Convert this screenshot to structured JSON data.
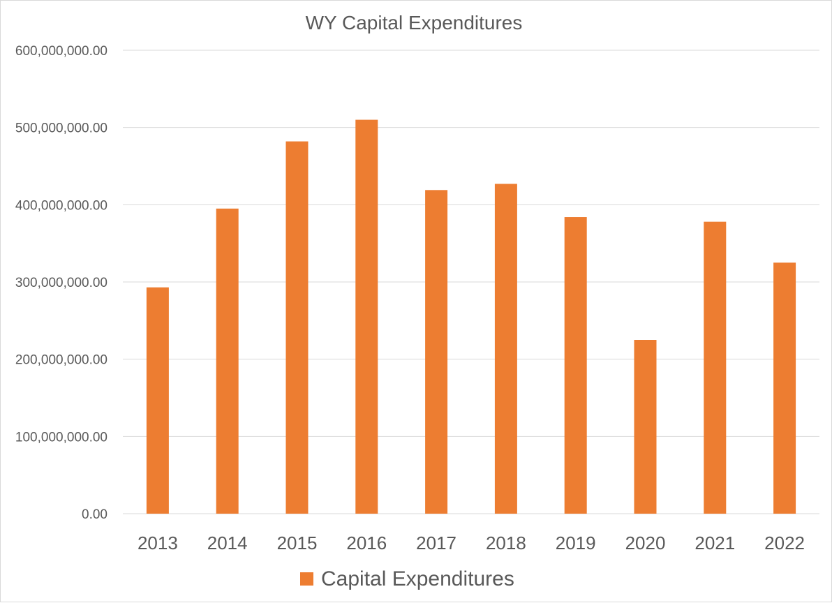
{
  "chart_data": {
    "type": "bar",
    "title": "WY Capital Expenditures",
    "xlabel": "",
    "ylabel": "",
    "categories": [
      "2013",
      "2014",
      "2015",
      "2016",
      "2017",
      "2018",
      "2019",
      "2020",
      "2021",
      "2022"
    ],
    "series": [
      {
        "name": "Capital Expenditures",
        "color": "#ED7D31",
        "values": [
          293000000,
          395000000,
          482000000,
          510000000,
          419000000,
          427000000,
          384000000,
          225000000,
          378000000,
          325000000
        ]
      }
    ],
    "ylim": [
      0,
      600000000
    ],
    "yticks": [
      0,
      100000000,
      200000000,
      300000000,
      400000000,
      500000000,
      600000000
    ],
    "ytick_labels": [
      "0.00",
      "100,000,000.00",
      "200,000,000.00",
      "300,000,000.00",
      "400,000,000.00",
      "500,000,000.00",
      "600,000,000.00"
    ],
    "grid": true,
    "legend": "bottom"
  }
}
